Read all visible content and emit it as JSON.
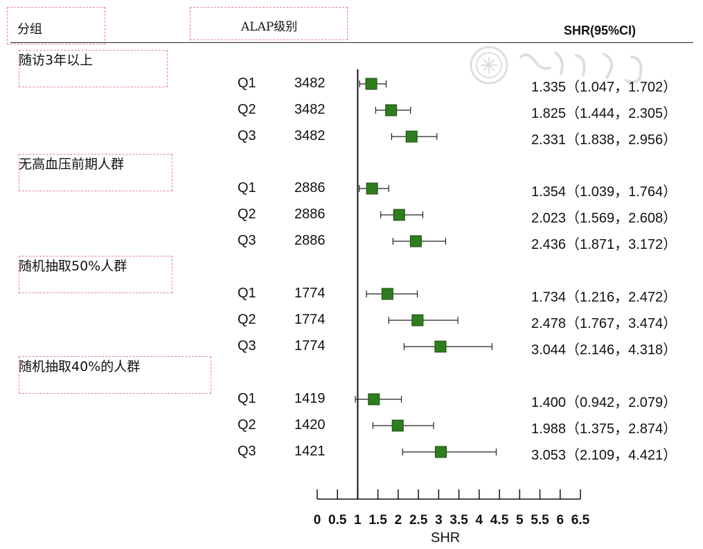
{
  "header": {
    "group_col": "分组",
    "level_col": "ALAP级别",
    "shr_col": "SHR(95%CI)"
  },
  "chart_data": {
    "type": "forest",
    "xlabel": "SHR",
    "xlim": [
      0,
      6.5
    ],
    "xticks": [
      "0",
      "0.5",
      "1",
      "1.5",
      "2",
      "2.5",
      "3",
      "3.5",
      "4",
      "4.5",
      "5",
      "5.5",
      "6",
      "6.5"
    ],
    "reference_line": 1,
    "marker_color": "#2e7d1e",
    "groups": [
      {
        "name": "随访3年以上",
        "rows": [
          {
            "level": "Q1",
            "n": "3482",
            "shr": 1.335,
            "lo": 1.047,
            "hi": 1.702,
            "label": "1.335（1.047，1.702）"
          },
          {
            "level": "Q2",
            "n": "3482",
            "shr": 1.825,
            "lo": 1.444,
            "hi": 2.305,
            "label": "1.825（1.444，2.305）"
          },
          {
            "level": "Q3",
            "n": "3482",
            "shr": 2.331,
            "lo": 1.838,
            "hi": 2.956,
            "label": "2.331（1.838，2.956）"
          }
        ]
      },
      {
        "name": "无高血压前期人群",
        "rows": [
          {
            "level": "Q1",
            "n": "2886",
            "shr": 1.354,
            "lo": 1.039,
            "hi": 1.764,
            "label": "1.354（1.039，1.764）"
          },
          {
            "level": "Q2",
            "n": "2886",
            "shr": 2.023,
            "lo": 1.569,
            "hi": 2.608,
            "label": "2.023（1.569，2.608）"
          },
          {
            "level": "Q3",
            "n": "2886",
            "shr": 2.436,
            "lo": 1.871,
            "hi": 3.172,
            "label": "2.436（1.871，3.172）"
          }
        ]
      },
      {
        "name": "随机抽取50%人群",
        "rows": [
          {
            "level": "Q1",
            "n": "1774",
            "shr": 1.734,
            "lo": 1.216,
            "hi": 2.472,
            "label": "1.734（1.216，2.472）"
          },
          {
            "level": "Q2",
            "n": "1774",
            "shr": 2.478,
            "lo": 1.767,
            "hi": 3.474,
            "label": "2.478（1.767，3.474）"
          },
          {
            "level": "Q3",
            "n": "1774",
            "shr": 3.044,
            "lo": 2.146,
            "hi": 4.318,
            "label": "3.044（2.146，4.318）"
          }
        ]
      },
      {
        "name": "随机抽取40%的人群",
        "rows": [
          {
            "level": "Q1",
            "n": "1419",
            "shr": 1.4,
            "lo": 0.942,
            "hi": 2.079,
            "label": "1.400（0.942，2.079）"
          },
          {
            "level": "Q2",
            "n": "1420",
            "shr": 1.988,
            "lo": 1.375,
            "hi": 2.874,
            "label": "1.988（1.375，2.874）"
          },
          {
            "level": "Q3",
            "n": "1421",
            "shr": 3.053,
            "lo": 2.109,
            "hi": 4.421,
            "label": "3.053（2.109，4.421）"
          }
        ]
      }
    ]
  }
}
